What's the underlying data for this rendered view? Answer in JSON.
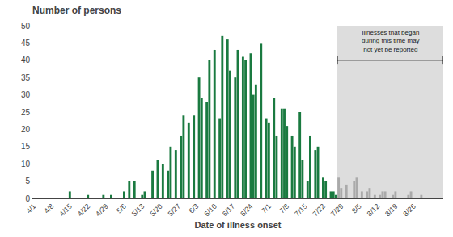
{
  "chart_data": {
    "type": "bar",
    "title": "Number of persons",
    "xlabel": "Date of illness onset",
    "annotation": "Illnesses that began\nduring this time may\nnot yet be reported",
    "categories": [
      "4/1",
      null,
      null,
      null,
      null,
      null,
      null,
      "4/8",
      null,
      null,
      null,
      null,
      null,
      null,
      "4/15",
      null,
      null,
      null,
      null,
      null,
      null,
      "4/22",
      null,
      null,
      null,
      null,
      null,
      null,
      "4/29",
      null,
      null,
      null,
      null,
      null,
      null,
      "5/6",
      null,
      null,
      null,
      null,
      null,
      null,
      "5/13",
      null,
      null,
      null,
      null,
      null,
      null,
      "5/20",
      null,
      null,
      null,
      null,
      null,
      null,
      "5/27",
      null,
      null,
      null,
      null,
      null,
      null,
      "6/3",
      null,
      null,
      null,
      null,
      null,
      null,
      "6/10",
      null,
      null,
      null,
      null,
      null,
      null,
      "6/17",
      null,
      null,
      null,
      null,
      null,
      null,
      "6/24",
      null,
      null,
      null,
      null,
      null,
      null,
      "7/1",
      null,
      null,
      null,
      null,
      null,
      null,
      "7/8",
      null,
      null,
      null,
      null,
      null,
      null,
      "7/15",
      null,
      null,
      null,
      null,
      null,
      null,
      "7/22",
      null,
      null,
      null,
      null,
      null,
      null,
      "7/29",
      null,
      null,
      null,
      null,
      null,
      null,
      "8/5",
      null,
      null,
      null,
      null,
      null,
      null,
      "8/12",
      null,
      null,
      null,
      null,
      null,
      null,
      "8/19",
      null,
      null,
      null,
      null,
      null,
      null,
      "8/26",
      null,
      null,
      null,
      null,
      null,
      null,
      null,
      null,
      null,
      null,
      null
    ],
    "values": [
      0,
      0,
      0,
      0,
      0,
      0,
      0,
      0,
      0,
      0,
      0,
      0,
      0,
      0,
      2,
      0,
      0,
      0,
      0,
      0,
      0,
      1,
      0,
      0,
      0,
      0,
      0,
      1,
      0,
      0,
      1,
      0,
      0,
      0,
      0,
      2,
      0,
      5,
      0,
      5,
      0,
      0,
      1,
      2,
      0,
      0,
      8,
      0,
      11,
      0,
      10,
      0,
      8,
      15,
      0,
      14,
      0,
      18,
      24,
      0,
      22,
      0,
      24,
      0,
      35,
      29,
      0,
      28,
      40,
      0,
      43,
      0,
      23,
      47,
      0,
      46,
      37,
      0,
      35,
      43,
      0,
      41,
      40,
      0,
      42,
      30,
      33,
      0,
      45,
      0,
      23,
      22,
      0,
      29,
      18,
      0,
      26,
      26,
      21,
      0,
      18,
      15,
      0,
      25,
      11,
      0,
      5,
      18,
      0,
      14,
      15,
      0,
      6,
      5,
      0,
      2,
      2,
      1,
      6,
      3,
      0,
      4,
      0,
      0,
      5,
      6,
      0,
      2,
      0,
      2,
      3,
      0,
      1,
      0,
      1,
      2,
      2,
      0,
      0,
      1,
      2,
      0,
      0,
      0,
      0,
      1,
      2,
      0,
      0,
      0,
      1,
      0,
      0,
      0,
      0,
      0,
      0,
      0,
      0
    ],
    "colors": [
      "#1a7a40",
      "#1a7a40",
      "#1a7a40",
      "#1a7a40",
      "#1a7a40",
      "#1a7a40",
      "#1a7a40",
      "#1a7a40",
      "#1a7a40",
      "#1a7a40",
      "#1a7a40",
      "#1a7a40",
      "#1a7a40",
      "#1a7a40",
      "#1a7a40",
      "#1a7a40",
      "#1a7a40",
      "#1a7a40",
      "#1a7a40",
      "#1a7a40",
      "#1a7a40",
      "#1a7a40",
      "#1a7a40",
      "#1a7a40",
      "#1a7a40",
      "#1a7a40",
      "#1a7a40",
      "#1a7a40",
      "#1a7a40",
      "#1a7a40",
      "#1a7a40",
      "#1a7a40",
      "#1a7a40",
      "#1a7a40",
      "#1a7a40",
      "#1a7a40",
      "#1a7a40",
      "#1a7a40",
      "#1a7a40",
      "#1a7a40",
      "#1a7a40",
      "#1a7a40",
      "#1a7a40",
      "#1a7a40",
      "#1a7a40",
      "#1a7a40",
      "#1a7a40",
      "#1a7a40",
      "#1a7a40",
      "#1a7a40",
      "#1a7a40",
      "#1a7a40",
      "#1a7a40",
      "#1a7a40",
      "#1a7a40",
      "#1a7a40",
      "#1a7a40",
      "#1a7a40",
      "#1a7a40",
      "#1a7a40",
      "#1a7a40",
      "#1a7a40",
      "#1a7a40",
      "#1a7a40",
      "#1a7a40",
      "#1a7a40",
      "#1a7a40",
      "#1a7a40",
      "#1a7a40",
      "#1a7a40",
      "#1a7a40",
      "#1a7a40",
      "#1a7a40",
      "#1a7a40",
      "#1a7a40",
      "#1a7a40",
      "#1a7a40",
      "#1a7a40",
      "#1a7a40",
      "#1a7a40",
      "#1a7a40",
      "#1a7a40",
      "#1a7a40",
      "#1a7a40",
      "#1a7a40",
      "#1a7a40",
      "#1a7a40",
      "#1a7a40",
      "#1a7a40",
      "#1a7a40",
      "#1a7a40",
      "#1a7a40",
      "#1a7a40",
      "#1a7a40",
      "#1a7a40",
      "#1a7a40",
      "#1a7a40",
      "#1a7a40",
      "#1a7a40",
      "#1a7a40",
      "#1a7a40",
      "#1a7a40",
      "#1a7a40",
      "#1a7a40",
      "#1a7a40",
      "#1a7a40",
      "#1a7a40",
      "#1a7a40",
      "#1a7a40",
      "#1a7a40",
      "#1a7a40",
      "#1a7a40",
      "#1a7a40",
      "#1a7a40",
      "#1a7a40",
      "#1a7a40",
      "#1a7a40",
      "#1a7a40",
      "#aaaaaa",
      "#aaaaaa",
      "#aaaaaa",
      "#aaaaaa",
      "#aaaaaa",
      "#aaaaaa",
      "#aaaaaa",
      "#aaaaaa",
      "#aaaaaa",
      "#aaaaaa",
      "#aaaaaa",
      "#aaaaaa",
      "#aaaaaa",
      "#aaaaaa",
      "#aaaaaa",
      "#aaaaaa",
      "#aaaaaa",
      "#aaaaaa",
      "#aaaaaa",
      "#aaaaaa",
      "#aaaaaa",
      "#aaaaaa",
      "#aaaaaa",
      "#aaaaaa",
      "#aaaaaa",
      "#aaaaaa",
      "#aaaaaa",
      "#aaaaaa",
      "#aaaaaa",
      "#aaaaaa",
      "#aaaaaa",
      "#aaaaaa",
      "#aaaaaa",
      "#aaaaaa",
      "#aaaaaa",
      "#aaaaaa",
      "#aaaaaa",
      "#aaaaaa",
      "#aaaaaa",
      "#aaaaaa",
      "#aaaaaa"
    ],
    "ylim": [
      0,
      50
    ],
    "yticks": [
      0,
      5,
      10,
      15,
      20,
      25,
      30,
      35,
      40,
      45,
      50
    ],
    "grid": false
  }
}
